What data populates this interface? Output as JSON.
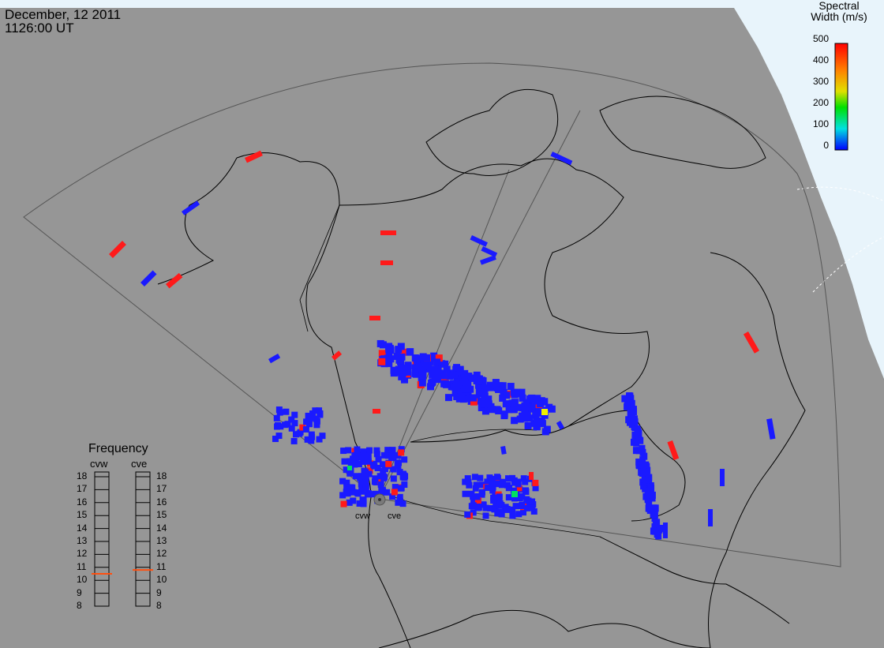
{
  "header": {
    "date": "December, 12 2011",
    "time": "1126:00 UT"
  },
  "colorbar": {
    "title_line1": "Spectral",
    "title_line2": "Width (m/s)",
    "ticks": [
      "500",
      "400",
      "300",
      "200",
      "100",
      "0"
    ],
    "colors": [
      "#0000ff",
      "#00e0e0",
      "#00e000",
      "#e0e000",
      "#ff8000",
      "#ff0000"
    ]
  },
  "frequency": {
    "title": "Frequency",
    "radars": [
      "cvw",
      "cve"
    ],
    "labels": [
      "18",
      "17",
      "16",
      "15",
      "14",
      "13",
      "12",
      "11",
      "10",
      "9",
      "8"
    ],
    "current": {
      "cvw": 10.5,
      "cve": 10.8
    }
  },
  "radar_sites": {
    "west": "cvw",
    "east": "cve"
  },
  "colors": {
    "land": "#969696",
    "ocean": "#e8f4fb",
    "low": "#1a1aff",
    "high": "#ff1a1a"
  }
}
